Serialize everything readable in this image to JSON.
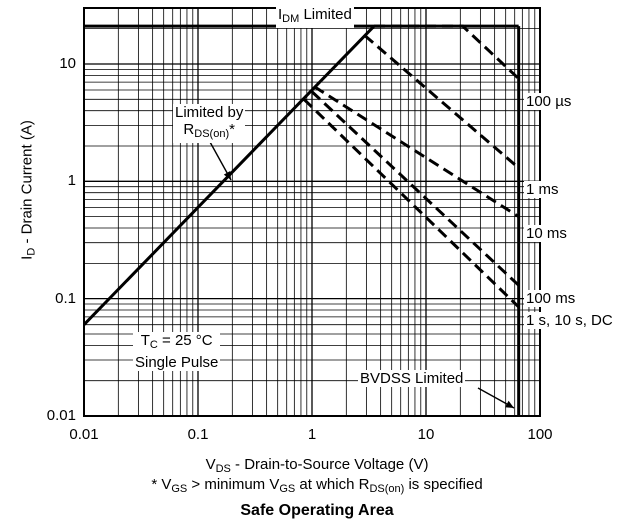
{
  "chart_data": {
    "type": "line",
    "title": "Safe Operating Area",
    "xlabel": {
      "main": "V",
      "sub": "DS",
      "rest": " - Drain-to-Source Voltage (V)"
    },
    "ylabel": {
      "main": "I",
      "sub": "D",
      "rest": " - Drain Current (A)"
    },
    "footnote": {
      "p1": "* V",
      "s1": "GS",
      "p2": " > minimum V",
      "s2": "GS",
      "p3": " at which R",
      "s3": "DS(on)",
      "p4": " is specified"
    },
    "x_scale": "log",
    "y_scale": "log",
    "xlim": [
      0.01,
      100
    ],
    "ylim": [
      0.01,
      30
    ],
    "xticks": [
      "0.01",
      "0.1",
      "1",
      "10",
      "100"
    ],
    "yticks": [
      "0.01",
      "0.1",
      "1",
      "10"
    ],
    "grid": true,
    "limits": {
      "idm_level": 21,
      "bvdss_voltage": 65,
      "rds_line": {
        "x": [
          0.01,
          3.5
        ],
        "y": [
          0.06,
          21
        ]
      }
    },
    "series": [
      {
        "name": "100 µs",
        "x": [
          3.5,
          21,
          65
        ],
        "y": [
          21,
          21,
          7.5
        ]
      },
      {
        "name": "1 ms",
        "x": [
          2.9,
          65
        ],
        "y": [
          17.5,
          1.3
        ]
      },
      {
        "name": "10 ms",
        "x": [
          1.05,
          65
        ],
        "y": [
          6.4,
          0.5
        ]
      },
      {
        "name": "100 ms",
        "x": [
          1,
          65
        ],
        "y": [
          5.8,
          0.13
        ]
      },
      {
        "name": "1 s, 10 s, DC",
        "x": [
          0.85,
          65
        ],
        "y": [
          5.0,
          0.085
        ]
      }
    ],
    "annotations": {
      "idm": {
        "main": "I",
        "sub": "DM",
        "rest": " Limited"
      },
      "rds": {
        "line1": "Limited by",
        "main": "R",
        "sub": "DS(on)",
        "rest": "*"
      },
      "cond": {
        "p1": "T",
        "s1": "C",
        "p2": " = 25 °C",
        "line2": "Single Pulse"
      },
      "bvdss": "BVDSS Limited"
    }
  }
}
